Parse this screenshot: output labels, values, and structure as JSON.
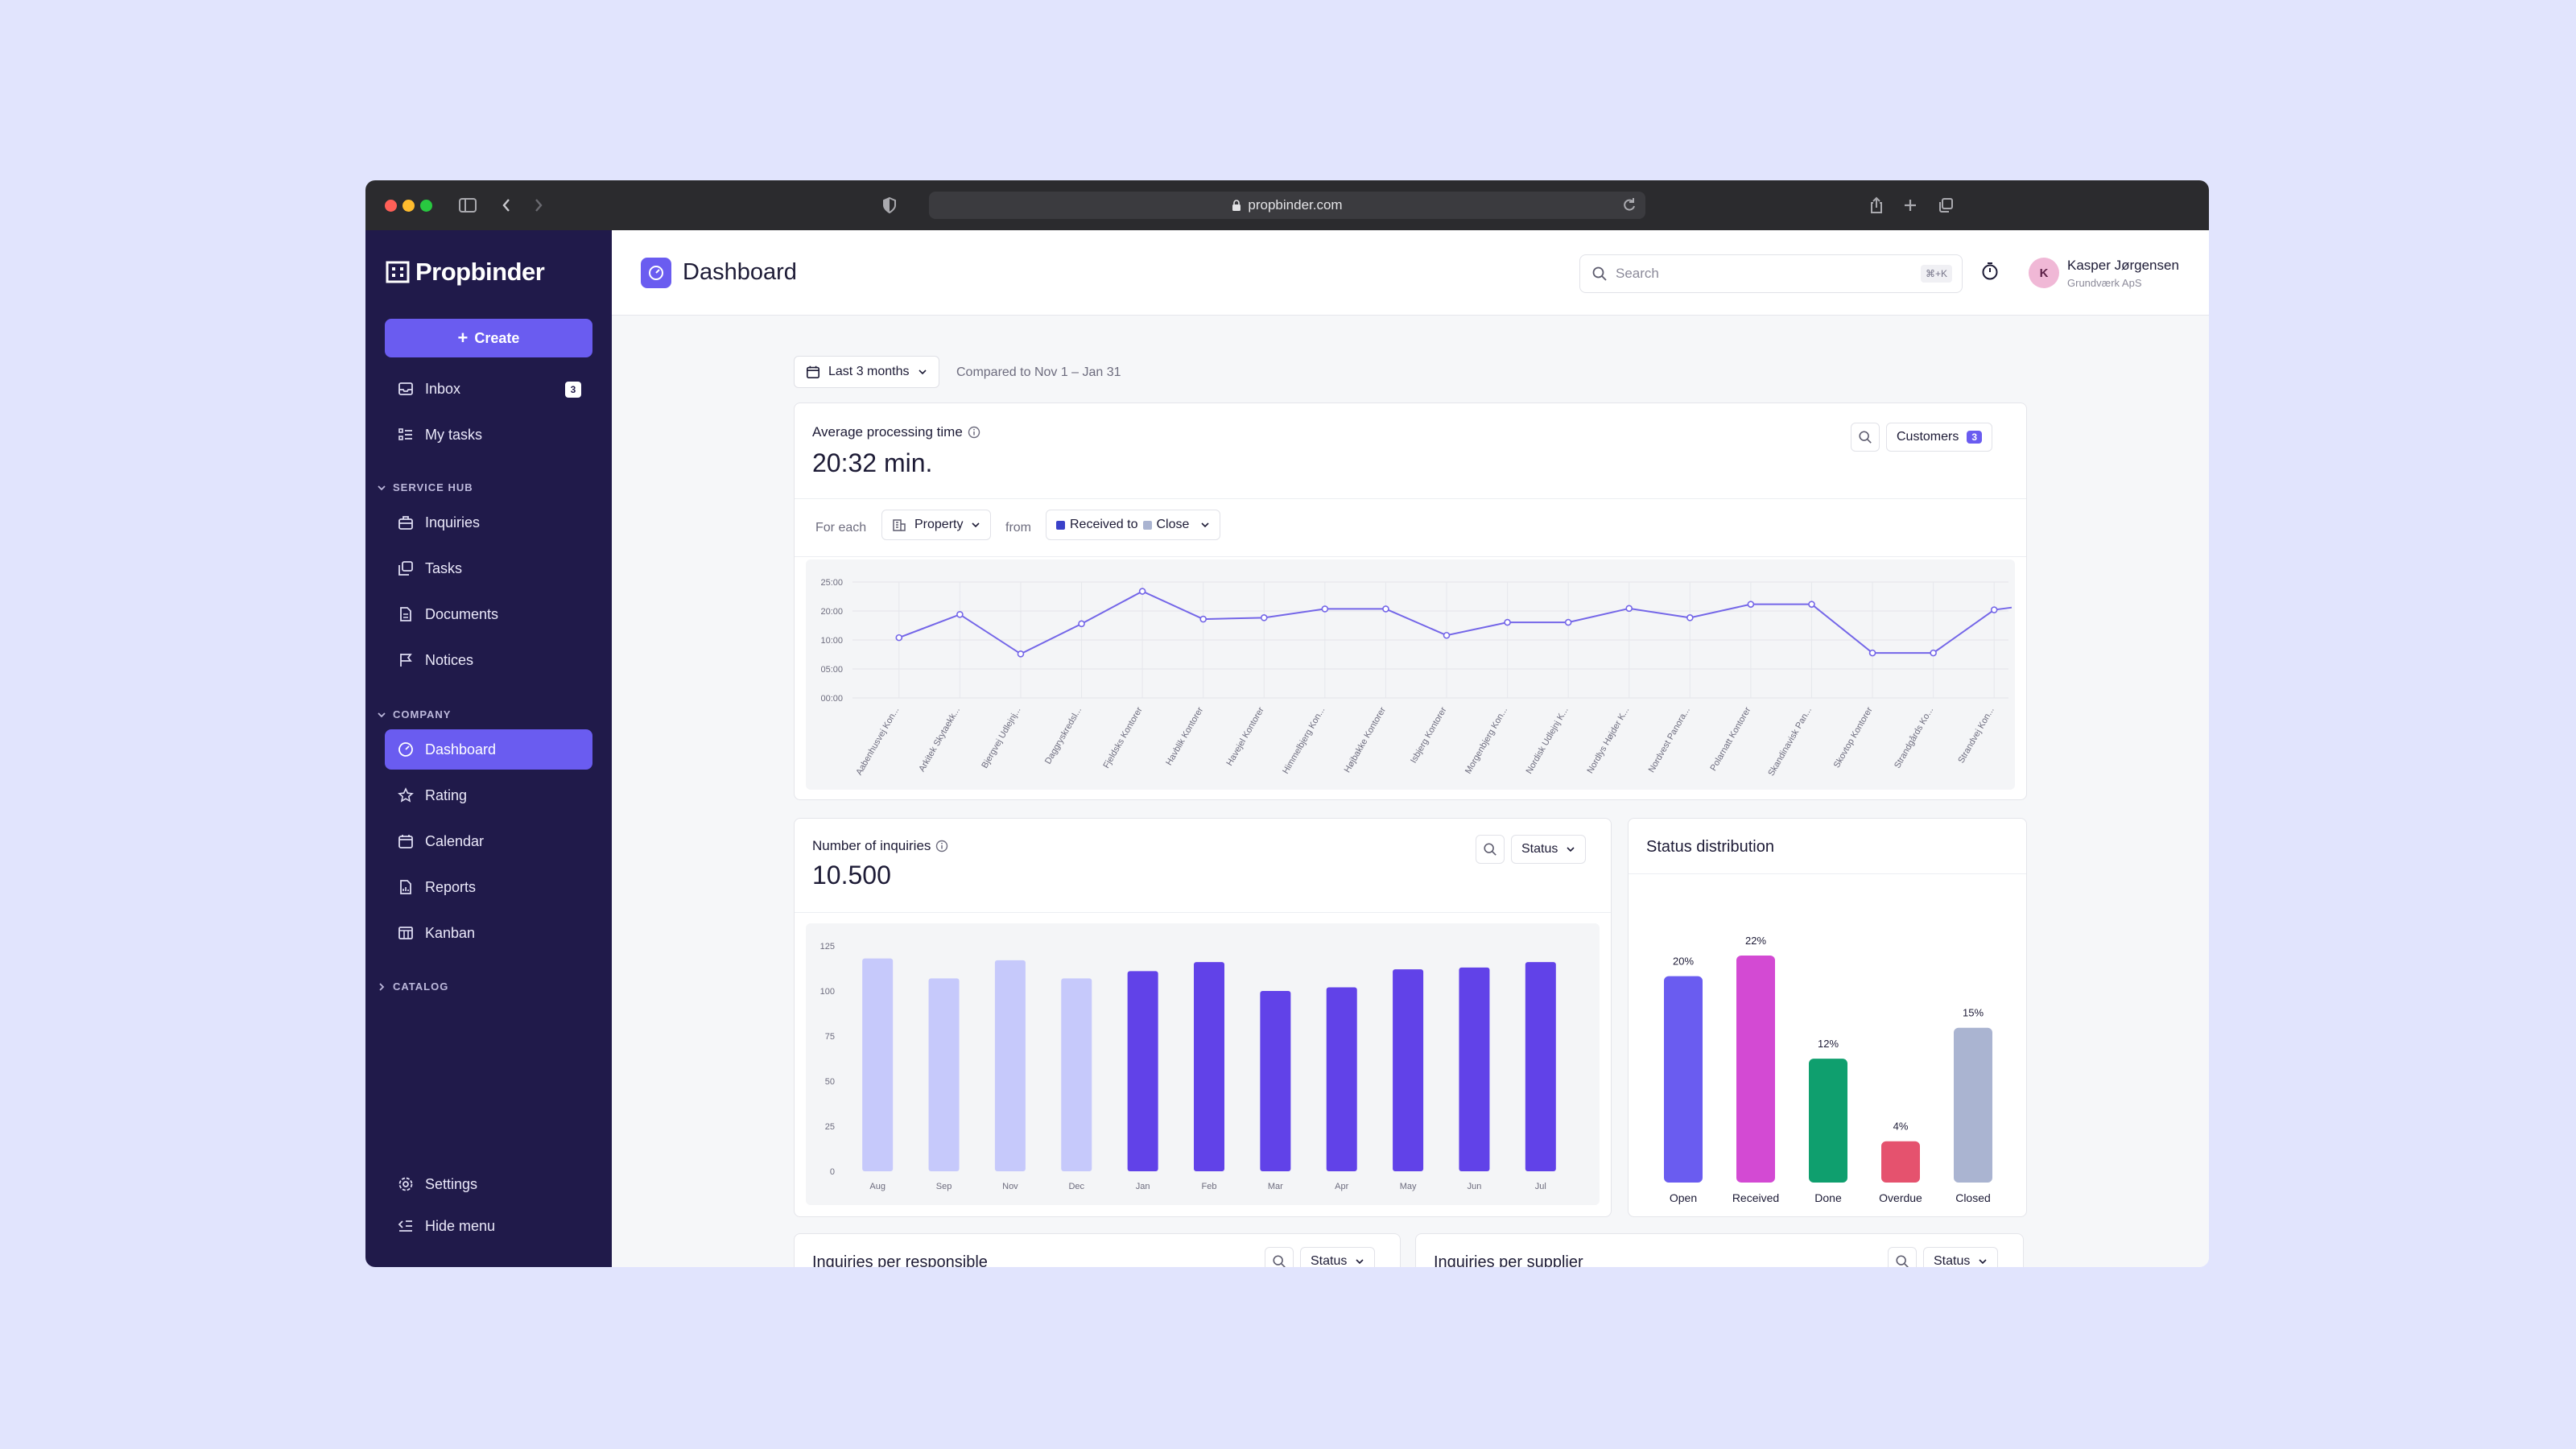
{
  "browser": {
    "url": "propbinder.com"
  },
  "sidebar": {
    "brand": "Propbinder",
    "create_label": "Create",
    "items": [
      {
        "label": "Inbox",
        "badge": "3"
      },
      {
        "label": "My tasks"
      }
    ],
    "service_hub": {
      "label": "SERVICE HUB",
      "items": [
        "Inquiries",
        "Tasks",
        "Documents",
        "Notices"
      ]
    },
    "company": {
      "label": "COMPANY",
      "items": [
        "Dashboard",
        "Rating",
        "Calendar",
        "Reports",
        "Kanban"
      ]
    },
    "catalog": {
      "label": "CATALOG"
    },
    "settings_label": "Settings",
    "hide_menu_label": "Hide menu"
  },
  "header": {
    "title": "Dashboard",
    "search_placeholder": "Search",
    "search_shortcut": "⌘+K",
    "user": {
      "initial": "K",
      "name": "Kasper Jørgensen",
      "company": "Grundværk ApS"
    }
  },
  "filters": {
    "period": "Last 3 months",
    "compared": "Compared to Nov 1 – Jan 31"
  },
  "colors": {
    "accent": "#6a5cf0",
    "sidebar": "#201a4a",
    "open": "#6a5cf0",
    "received": "#d34ad3",
    "done": "#0f9f6e",
    "overdue": "#e5526e",
    "closed": "#aab4d1"
  },
  "processing_card": {
    "title": "Average processing time",
    "value": "20:32 min.",
    "customers_label": "Customers",
    "customers_count": "3",
    "for_each_label": "For each",
    "group_by": "Property",
    "from_label": "from",
    "from_value": "Received to",
    "to_value": "Close"
  },
  "inquiries_card": {
    "title": "Number of inquiries",
    "value": "10.500",
    "status_label": "Status"
  },
  "status_card": {
    "title": "Status distribution"
  },
  "bottom_cards": [
    {
      "title": "Inquiries per responsible",
      "status_label": "Status"
    },
    {
      "title": "Inquiries per supplier",
      "status_label": "Status"
    }
  ],
  "chart_data": [
    {
      "type": "line",
      "yticks": [
        "25:00",
        "20:00",
        "10:00",
        "05:00",
        "00:00"
      ],
      "ylim": [
        0,
        25
      ],
      "categories": [
        "Aabenhusvej Kon...",
        "Arkitek Skytaekk...",
        "Bjergvej Udlejnj...",
        "Daggryskredsl...",
        "Fjeldsks Kontorer",
        "Havblik Kontorer",
        "Havejel Kontorer",
        "Himmelbjerg Kon...",
        "Højbakke Kontorer",
        "Isbjerg Kontorer",
        "Morgenbjerg Kon...",
        "Nordisk Udlejnj K...",
        "Nordlys Højder K...",
        "Nordvest Panora...",
        "Polarnatt Kontorer",
        "Skandinavisk Pan...",
        "Skovtop Kontorer",
        "Strandgårds Ko...",
        "Strandvej Kon..."
      ],
      "values": [
        13,
        18,
        9.5,
        16,
        23,
        17,
        17.3,
        19.2,
        19.2,
        13.5,
        16.3,
        16.3,
        19.3,
        17.3,
        20.2,
        20.2,
        9.7,
        9.7,
        19
      ]
    },
    {
      "type": "bar",
      "categories": [
        "Aug",
        "Sep",
        "Nov",
        "Dec",
        "Jan",
        "Feb",
        "Mar",
        "Apr",
        "May",
        "Jun",
        "Jul"
      ],
      "values": [
        118,
        107,
        117,
        107,
        111,
        116,
        100,
        102,
        112,
        113,
        116
      ],
      "yticks": [
        0,
        25,
        50,
        75,
        100,
        125
      ],
      "ylim": [
        0,
        125
      ],
      "comparison_count": 4
    },
    {
      "type": "bar",
      "categories": [
        "Open",
        "Received",
        "Done",
        "Overdue",
        "Closed"
      ],
      "values": [
        20,
        22,
        12,
        4,
        15
      ],
      "labels": [
        "20%",
        "22%",
        "12%",
        "4%",
        "15%"
      ]
    }
  ]
}
